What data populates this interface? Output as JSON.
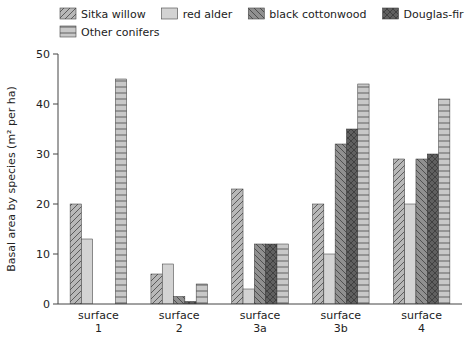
{
  "chart_data": {
    "type": "bar",
    "categories": [
      "surface\n1",
      "surface\n2",
      "surface\n3a",
      "surface\n3b",
      "surface\n4"
    ],
    "series": [
      {
        "name": "Sitka willow",
        "color": "#b8b8b8",
        "values": [
          20,
          6,
          23,
          20,
          29
        ]
      },
      {
        "name": "red alder",
        "color": "#d3d3d3",
        "values": [
          13,
          8,
          3,
          10,
          20
        ]
      },
      {
        "name": "black cottonwood",
        "color": "#909090",
        "values": [
          0,
          1.5,
          12,
          32,
          29
        ]
      },
      {
        "name": "Douglas-fir",
        "color": "#606060",
        "values": [
          0,
          0.5,
          12,
          35,
          30
        ]
      },
      {
        "name": "Other conifers",
        "color": "#c8c8c8",
        "values": [
          45,
          4,
          12,
          44,
          41
        ]
      }
    ],
    "ylabel": "Basal area by species (m² per ha)",
    "ylim": [
      0,
      50
    ],
    "yticks": [
      0,
      10,
      20,
      30,
      40,
      50
    ],
    "legend": "top"
  }
}
